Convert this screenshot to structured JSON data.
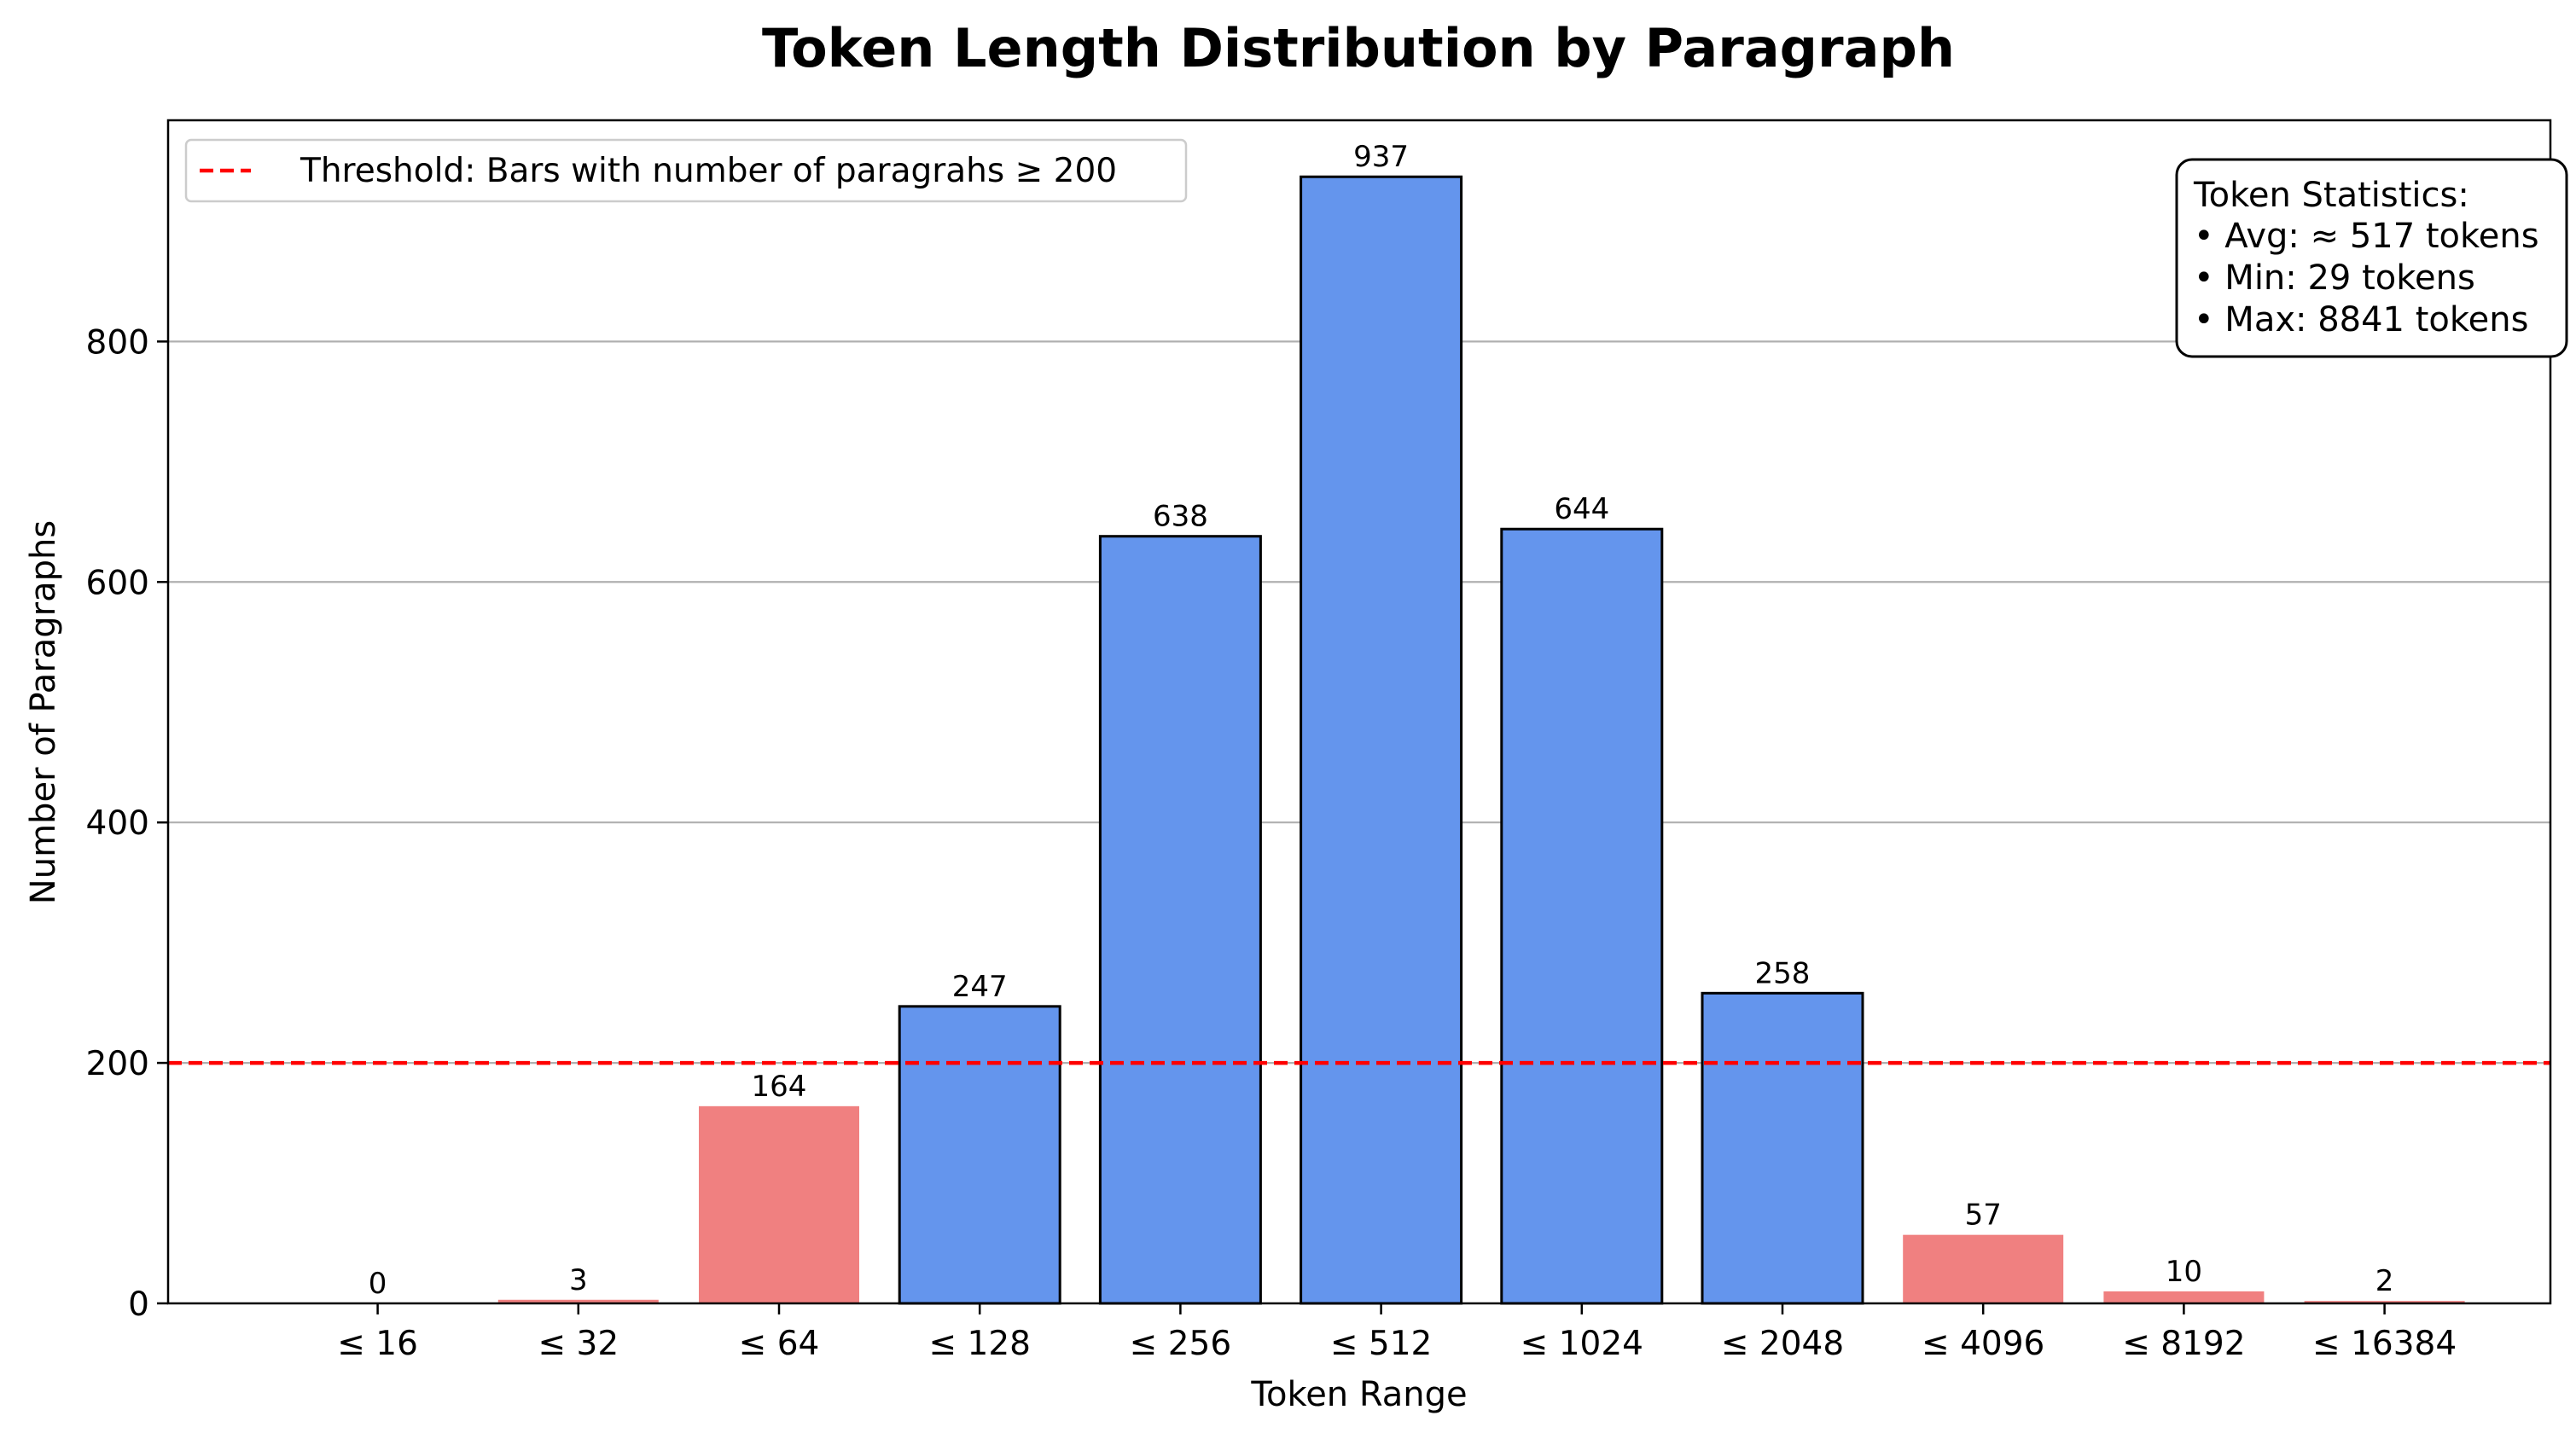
{
  "chart_data": {
    "type": "bar",
    "title": "Token Length Distribution by Paragraph",
    "xlabel": "Token Range",
    "ylabel": "Number of Paragraphs",
    "categories": [
      "≤ 16",
      "≤ 32",
      "≤ 64",
      "≤ 128",
      "≤ 256",
      "≤ 512",
      "≤ 1024",
      "≤ 2048",
      "≤ 4096",
      "≤ 8192",
      "≤ 16384"
    ],
    "values": [
      0,
      3,
      164,
      247,
      638,
      937,
      644,
      258,
      57,
      10,
      2
    ],
    "ylim": [
      0,
      984
    ],
    "yticks": [
      0,
      200,
      400,
      600,
      800
    ],
    "grid": "y-axis",
    "threshold": {
      "value": 200,
      "label": "Threshold: Bars with number of paragrahs ≥ 200",
      "color": "#ff0000"
    },
    "colors": {
      "above_threshold": "#6495ed",
      "below_threshold": "#f08080",
      "grid": "#b0b0b0"
    },
    "legend_position": "top-left",
    "stats_box": {
      "position": "top-right",
      "lines": [
        "Token Statistics:",
        "• Avg: ≈ 517 tokens",
        "• Min: 29 tokens",
        "• Max: 8841 tokens"
      ]
    }
  }
}
